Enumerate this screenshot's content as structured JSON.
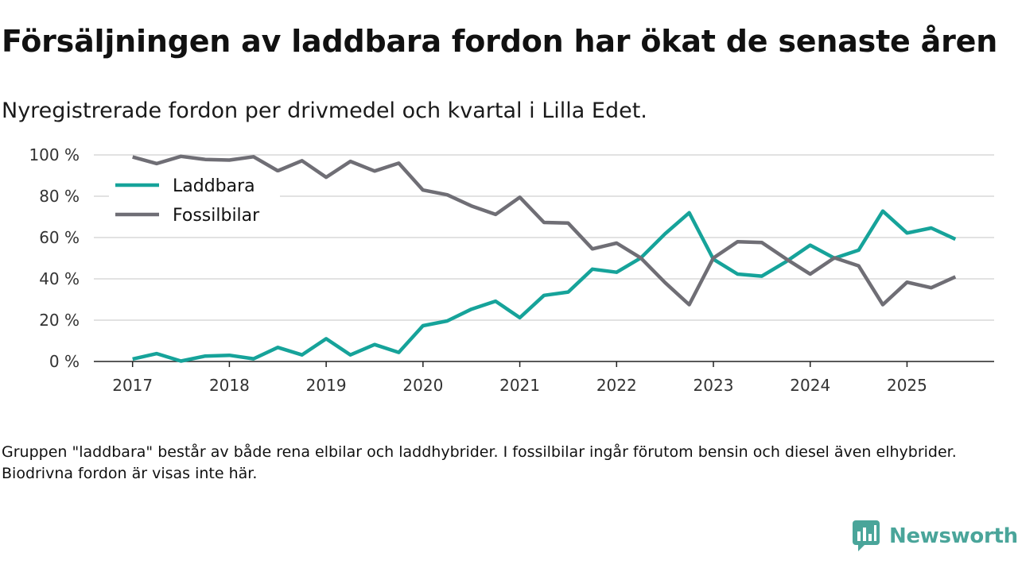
{
  "header": {
    "title": "Försäljningen av laddbara fordon har ökat de senaste åren",
    "subtitle": "Nyregistrerade fordon per drivmedel och kvartal i Lilla Edet."
  },
  "footnote": "Gruppen \"laddbara\" består av både rena elbilar och laddhybrider. I fossilbilar ingår förutom bensin och diesel även elhybrider. Biodrivna fordon är visas inte här.",
  "brand": {
    "name": "Newsworthy",
    "logo_icon": "newsworthy-chart-bubble-icon",
    "color": "#4aa59a"
  },
  "chart_data": {
    "type": "line",
    "title": "",
    "xlabel": "",
    "ylabel": "",
    "ylim": [
      0,
      100
    ],
    "xlim": [
      2016.6,
      2025.9
    ],
    "grid": true,
    "legend_position": "top-left",
    "y_ticks": [
      {
        "value": 0,
        "label": "0 %"
      },
      {
        "value": 20,
        "label": "20 %"
      },
      {
        "value": 40,
        "label": "40 %"
      },
      {
        "value": 60,
        "label": "60 %"
      },
      {
        "value": 80,
        "label": "80 %"
      },
      {
        "value": 100,
        "label": "100 %"
      }
    ],
    "x_ticks": [
      {
        "value": 2017,
        "label": "2017"
      },
      {
        "value": 2018,
        "label": "2018"
      },
      {
        "value": 2019,
        "label": "2019"
      },
      {
        "value": 2020,
        "label": "2020"
      },
      {
        "value": 2021,
        "label": "2021"
      },
      {
        "value": 2022,
        "label": "2022"
      },
      {
        "value": 2023,
        "label": "2023"
      },
      {
        "value": 2024,
        "label": "2024"
      },
      {
        "value": 2025,
        "label": "2025"
      }
    ],
    "x": [
      2017,
      2017.25,
      2017.5,
      2017.75,
      2018,
      2018.25,
      2018.5,
      2018.75,
      2019,
      2019.25,
      2019.5,
      2019.75,
      2020,
      2020.25,
      2020.5,
      2020.75,
      2021,
      2021.25,
      2021.5,
      2021.75,
      2022,
      2022.25,
      2022.5,
      2022.75,
      2023,
      2023.25,
      2023.5,
      2023.75,
      2024,
      2024.25,
      2024.5,
      2024.75,
      2025,
      2025.25,
      2025.5
    ],
    "series": [
      {
        "name": "Laddbara",
        "color": "#16a39a",
        "values": [
          1.2,
          3.8,
          0.2,
          2.6,
          3.0,
          1.3,
          6.8,
          3.2,
          11.0,
          3.2,
          8.2,
          4.4,
          17.3,
          19.6,
          25.3,
          29.2,
          21.2,
          32.0,
          33.6,
          44.7,
          43.2,
          50.1,
          61.8,
          72.0,
          49.5,
          42.3,
          41.3,
          48.3,
          56.3,
          50.0,
          53.9,
          72.8,
          62.2,
          64.6,
          59.2
        ]
      },
      {
        "name": "Fossilbilar",
        "color": "#6f6e75",
        "values": [
          99.0,
          95.8,
          99.3,
          97.8,
          97.5,
          99.1,
          92.3,
          97.2,
          89.2,
          96.9,
          92.2,
          96.0,
          83.0,
          80.7,
          75.3,
          71.2,
          79.5,
          67.3,
          67.0,
          54.5,
          57.3,
          50.1,
          38.2,
          27.5,
          50.1,
          58.0,
          57.6,
          49.7,
          42.3,
          50.2,
          46.3,
          27.5,
          38.4,
          35.7,
          41.0
        ]
      }
    ]
  }
}
